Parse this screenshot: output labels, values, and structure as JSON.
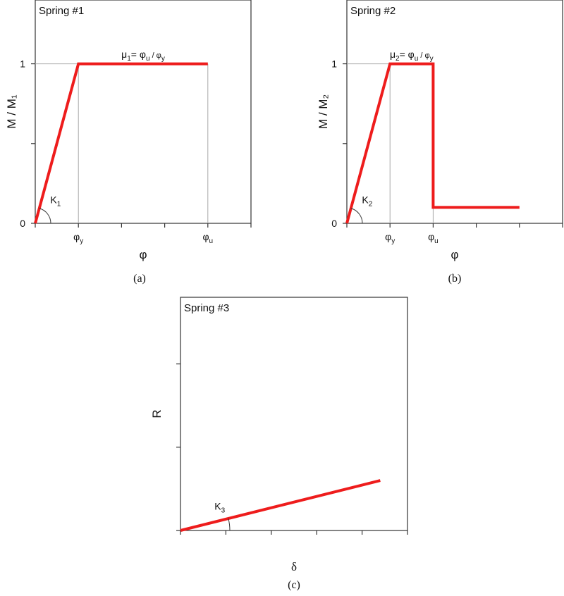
{
  "chart_data": [
    {
      "panel": "a",
      "type": "line",
      "title": "Spring #1",
      "xlabel": "φ",
      "ylabel": "M / M₁",
      "caption": "(a)",
      "xlim": [
        0,
        5
      ],
      "ylim": [
        0,
        1.4
      ],
      "x_tick_count": 6,
      "x_tick_labels": [
        {
          "x": 1,
          "text": "φ",
          "sub": "y"
        },
        {
          "x": 4,
          "text": "φ",
          "sub": "u"
        }
      ],
      "y_tick_values": [
        0,
        0.5,
        1
      ],
      "y_tick_labels": [
        {
          "y": 0,
          "text": "0"
        },
        {
          "y": 1,
          "text": "1"
        }
      ],
      "guides": [
        {
          "from": [
            0,
            1
          ],
          "to": [
            1,
            1
          ]
        },
        {
          "from": [
            1,
            0
          ],
          "to": [
            1,
            1
          ]
        },
        {
          "from": [
            4,
            0
          ],
          "to": [
            4,
            1
          ]
        }
      ],
      "series": [
        {
          "color": "#ee1c1c",
          "x": [
            0,
            1,
            4
          ],
          "y": [
            0,
            1,
            1
          ]
        }
      ],
      "angle_label": {
        "text": "K",
        "sub": "1",
        "x": 0.35,
        "y": 0.1
      },
      "ratio_label": {
        "x": 2.5,
        "y": 1.02,
        "mu": "μ",
        "mu_sub": "1",
        "eq": "= φ",
        "num_sub": "u",
        "slash": " / φ",
        "den_sub": "y"
      }
    },
    {
      "panel": "b",
      "type": "line",
      "title": "Spring #2",
      "xlabel": "φ",
      "ylabel": "M / M₂",
      "caption": "(b)",
      "xlim": [
        0,
        5
      ],
      "ylim": [
        0,
        1.4
      ],
      "x_tick_count": 6,
      "x_tick_labels": [
        {
          "x": 1,
          "text": "φ",
          "sub": "y"
        },
        {
          "x": 2,
          "text": "φ",
          "sub": "u"
        }
      ],
      "y_tick_values": [
        0,
        0.5,
        1
      ],
      "y_tick_labels": [
        {
          "y": 0,
          "text": "0"
        },
        {
          "y": 1,
          "text": "1"
        }
      ],
      "guides": [
        {
          "from": [
            0,
            1
          ],
          "to": [
            1,
            1
          ]
        },
        {
          "from": [
            1,
            0
          ],
          "to": [
            1,
            1
          ]
        },
        {
          "from": [
            2,
            0
          ],
          "to": [
            2,
            1
          ]
        }
      ],
      "series": [
        {
          "color": "#ee1c1c",
          "x": [
            0,
            1,
            2,
            2,
            4
          ],
          "y": [
            0,
            1,
            1,
            0.1,
            0.1
          ]
        }
      ],
      "angle_label": {
        "text": "K",
        "sub": "2",
        "x": 0.35,
        "y": 0.1
      },
      "ratio_label": {
        "x": 1.5,
        "y": 1.02,
        "mu": "μ",
        "mu_sub": "2",
        "eq": "= φ",
        "num_sub": "u",
        "slash": " / φ",
        "den_sub": "y"
      }
    },
    {
      "panel": "c",
      "type": "line",
      "title": "Spring #3",
      "xlabel": "δ",
      "ylabel": "R",
      "caption": "(c)",
      "xlim": [
        0,
        5
      ],
      "ylim": [
        0,
        1.4
      ],
      "x_tick_count": 6,
      "x_tick_labels": [],
      "y_tick_values": [
        0,
        0.5,
        1
      ],
      "y_tick_labels": [],
      "guides": [],
      "series": [
        {
          "color": "#ee1c1c",
          "x": [
            0,
            4.4
          ],
          "y": [
            0,
            0.3
          ]
        }
      ],
      "angle_label": {
        "text": "K",
        "sub": "3",
        "x": 0.75,
        "y": 0.1
      },
      "ratio_label": null
    }
  ]
}
